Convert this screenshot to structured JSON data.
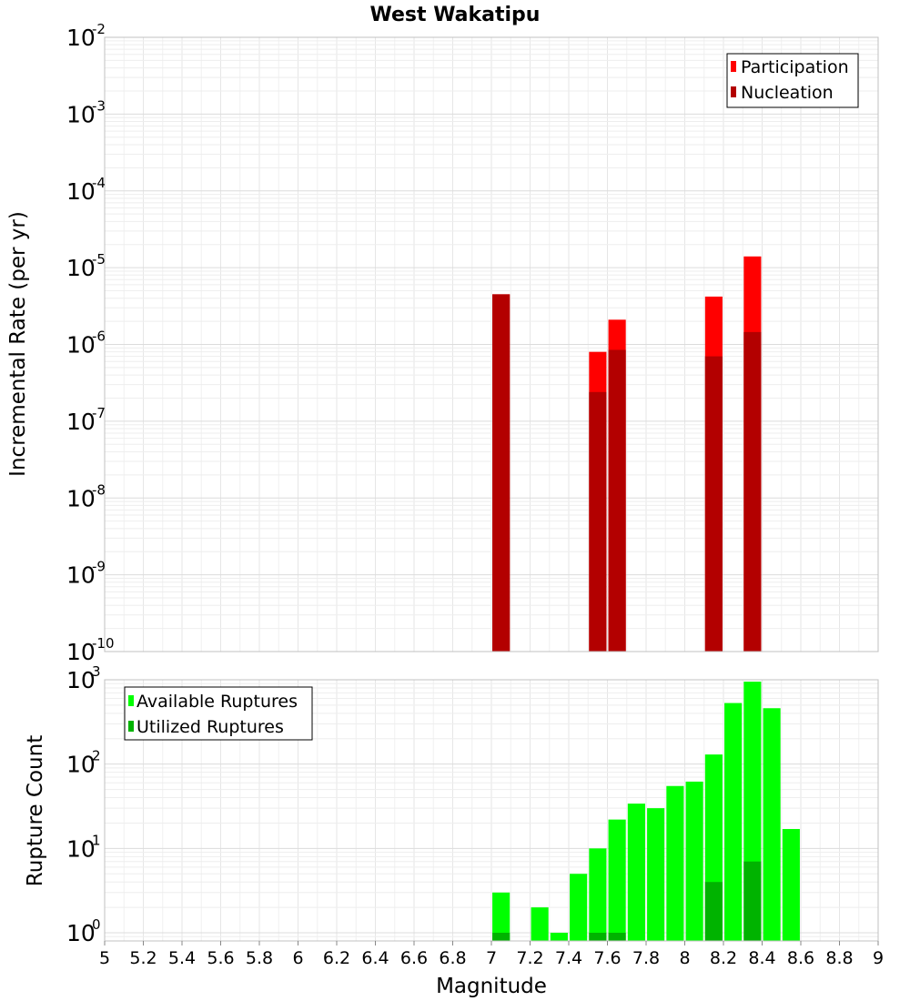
{
  "chart_data": [
    {
      "type": "bar",
      "title": "West Wakatipu",
      "xlabel": "Magnitude",
      "ylabel": "Incremental Rate (per yr)",
      "xlim": [
        5,
        9
      ],
      "yscale": "log",
      "ylim": [
        1e-10,
        0.01
      ],
      "bar_width": 0.09,
      "y_ticks": [
        {
          "base": "10",
          "exp": "-10"
        },
        {
          "base": "10",
          "exp": "-9"
        },
        {
          "base": "10",
          "exp": "-8"
        },
        {
          "base": "10",
          "exp": "-7"
        },
        {
          "base": "10",
          "exp": "-6"
        },
        {
          "base": "10",
          "exp": "-5"
        },
        {
          "base": "10",
          "exp": "-4"
        },
        {
          "base": "10",
          "exp": "-3"
        },
        {
          "base": "10",
          "exp": "-2"
        }
      ],
      "legend": {
        "position": "top-right",
        "entries": [
          "Participation",
          "Nucleation"
        ]
      },
      "series": [
        {
          "name": "Participation",
          "color": "#ff0000",
          "points": [
            [
              7.05,
              4.5e-06
            ],
            [
              7.55,
              8e-07
            ],
            [
              7.65,
              2.1e-06
            ],
            [
              8.15,
              4.2e-06
            ],
            [
              8.35,
              1.4e-05
            ]
          ]
        },
        {
          "name": "Nucleation",
          "color": "#b30000",
          "points": [
            [
              7.05,
              4.5e-06
            ],
            [
              7.55,
              2.4e-07
            ],
            [
              7.65,
              8.5e-07
            ],
            [
              8.15,
              7e-07
            ],
            [
              8.35,
              1.45e-06
            ]
          ]
        }
      ]
    },
    {
      "type": "bar",
      "xlabel": "Magnitude",
      "ylabel": "Rupture Count",
      "xlim": [
        5,
        9
      ],
      "yscale": "log",
      "ylim": [
        0.8,
        1000
      ],
      "bar_width": 0.09,
      "x_ticks": [
        "5",
        "5.2",
        "5.4",
        "5.6",
        "5.8",
        "6",
        "6.2",
        "6.4",
        "6.6",
        "6.8",
        "7",
        "7.2",
        "7.4",
        "7.6",
        "7.8",
        "8",
        "8.2",
        "8.4",
        "8.6",
        "8.8",
        "9"
      ],
      "y_ticks": [
        {
          "base": "10",
          "exp": "0"
        },
        {
          "base": "10",
          "exp": "1"
        },
        {
          "base": "10",
          "exp": "2"
        },
        {
          "base": "10",
          "exp": "3"
        }
      ],
      "legend": {
        "position": "top-left",
        "entries": [
          "Available Ruptures",
          "Utilized Ruptures"
        ]
      },
      "series": [
        {
          "name": "Available Ruptures",
          "color": "#00ff00",
          "points": [
            [
              7.05,
              3
            ],
            [
              7.25,
              2
            ],
            [
              7.35,
              1
            ],
            [
              7.45,
              5
            ],
            [
              7.55,
              10
            ],
            [
              7.65,
              22
            ],
            [
              7.75,
              34
            ],
            [
              7.85,
              30
            ],
            [
              7.95,
              55
            ],
            [
              8.05,
              62
            ],
            [
              8.15,
              130
            ],
            [
              8.25,
              530
            ],
            [
              8.35,
              950
            ],
            [
              8.45,
              460
            ],
            [
              8.55,
              17
            ]
          ]
        },
        {
          "name": "Utilized Ruptures",
          "color": "#00b300",
          "points": [
            [
              7.05,
              1
            ],
            [
              7.55,
              1
            ],
            [
              7.65,
              1
            ],
            [
              8.15,
              4
            ],
            [
              8.35,
              7
            ]
          ]
        }
      ]
    }
  ]
}
